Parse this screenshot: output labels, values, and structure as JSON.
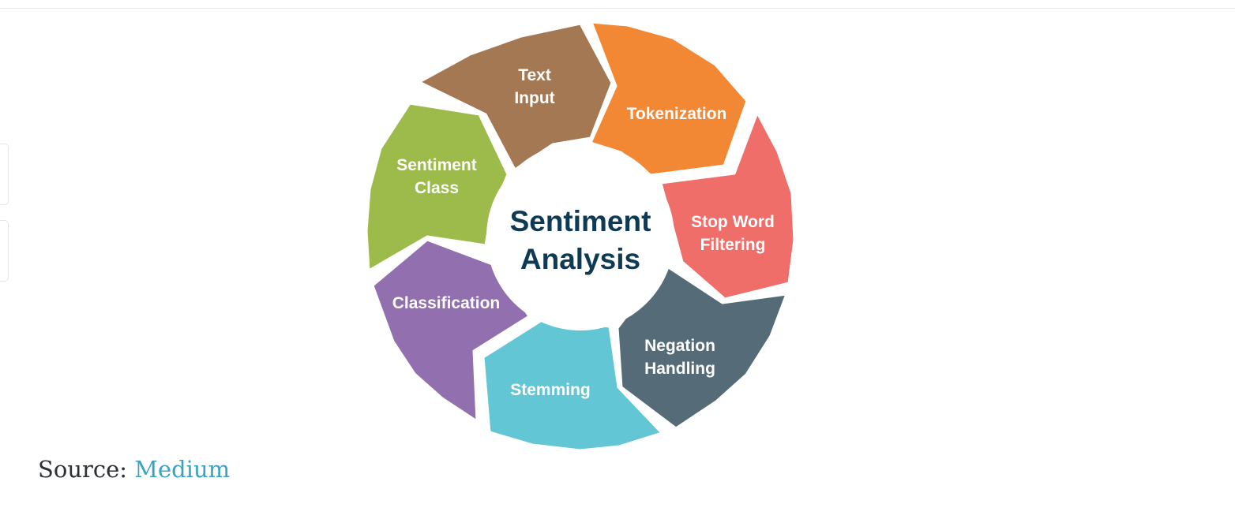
{
  "diagram": {
    "center": {
      "lines": [
        "Sentiment",
        "Analysis"
      ],
      "color": "#0f3a55"
    },
    "segments": [
      {
        "name": "text-input",
        "lines": [
          "Text",
          "Input"
        ],
        "color": "#a47853",
        "label_color": "#ffffff"
      },
      {
        "name": "tokenization",
        "lines": [
          "Tokenization"
        ],
        "color": "#f28734",
        "label_color": "#ffffff"
      },
      {
        "name": "stop-word-filtering",
        "lines": [
          "Stop Word",
          "Filtering"
        ],
        "color": "#ef6e69",
        "label_color": "#ffffff"
      },
      {
        "name": "negation-handling",
        "lines": [
          "Negation",
          "Handling"
        ],
        "color": "#566b78",
        "label_color": "#ffffff"
      },
      {
        "name": "stemming",
        "lines": [
          "Stemming"
        ],
        "color": "#62c6d4",
        "label_color": "#163a52"
      },
      {
        "name": "classification",
        "lines": [
          "Classification"
        ],
        "color": "#926faf",
        "label_color": "#ffffff"
      },
      {
        "name": "sentiment-class",
        "lines": [
          "Sentiment",
          "Class"
        ],
        "color": "#9dbb4a",
        "label_color": "#ffffff"
      }
    ]
  },
  "caption": {
    "prefix": "Source: ",
    "link_text": "Medium",
    "link_color": "#3aa2c2"
  }
}
